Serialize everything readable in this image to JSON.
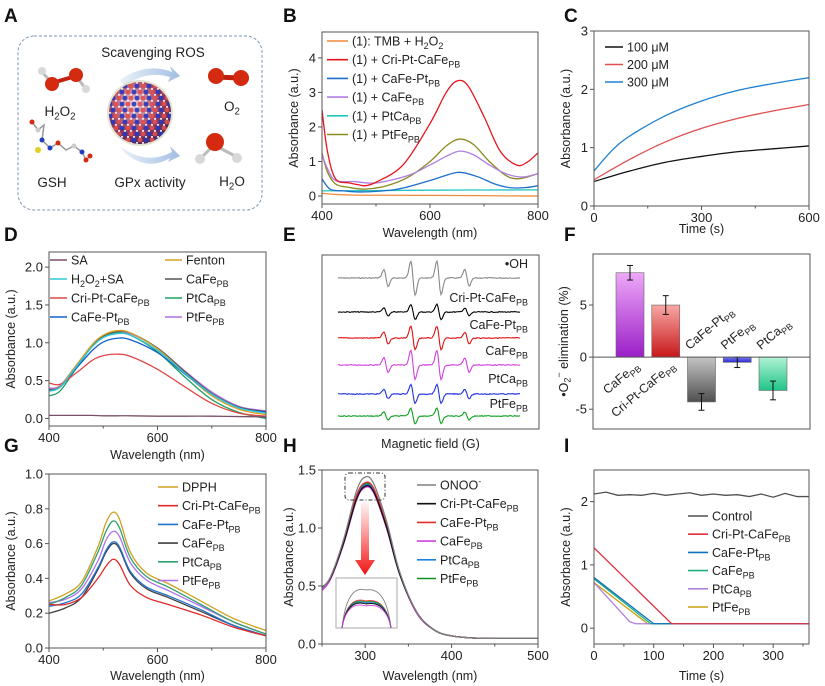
{
  "figure": {
    "panel_labels": [
      "A",
      "B",
      "C",
      "D",
      "E",
      "F",
      "G",
      "H",
      "I"
    ]
  },
  "panel_a": {
    "top_label": "Scavenging ROS",
    "bottom_label": "GPx activity",
    "molecules": {
      "h2o2": "H_{2}O_{2}",
      "gsh": "GSH",
      "o2": "O_{2}",
      "h2o": "H_{2}O"
    },
    "colors": {
      "border": "#7b97b8",
      "arrow": "#9dbbe0",
      "oxygen": "#d42a10",
      "hydrogen": "#d8d8d8"
    }
  },
  "chart_data": [
    {
      "id": "B",
      "type": "line",
      "xlabel": "Wavelength (nm)",
      "ylabel": "Absorbance (a.u.)",
      "xlim": [
        400,
        800
      ],
      "ylim": [
        -0.23,
        4.75
      ],
      "xticks": [
        "400",
        "600",
        "800"
      ],
      "yticks": [
        "0",
        "1",
        "2",
        "3",
        "4"
      ],
      "series": [
        {
          "name": "(1): TMB + H_{2}O_{2}",
          "color": "#f08a3c",
          "x": [
            400,
            450,
            600,
            800
          ],
          "y": [
            0.08,
            0.03,
            0.02,
            0.0
          ]
        },
        {
          "name": "(1) + Cri-Pt-CaFe_{PB}",
          "color": "#e8141e",
          "x": [
            400,
            410,
            425,
            450,
            470,
            480,
            500,
            550,
            600,
            630,
            650,
            670,
            700,
            730,
            760,
            780,
            800
          ],
          "y": [
            2.5,
            1.3,
            0.5,
            0.38,
            0.32,
            0.3,
            0.4,
            0.9,
            2.1,
            3.0,
            3.33,
            3.2,
            2.3,
            1.3,
            0.9,
            0.98,
            1.25
          ]
        },
        {
          "name": "(1) + CaFe-Pt_{PB}",
          "color": "#1f6fc8",
          "x": [
            400,
            415,
            440,
            480,
            540,
            600,
            640,
            660,
            690,
            720,
            750,
            780,
            800
          ],
          "y": [
            0.5,
            0.2,
            0.15,
            0.12,
            0.2,
            0.45,
            0.65,
            0.68,
            0.55,
            0.35,
            0.24,
            0.25,
            0.3
          ]
        },
        {
          "name": "(1) + CaFe_{PB}",
          "color": "#b07ee0",
          "x": [
            400,
            410,
            425,
            460,
            500,
            560,
            600,
            630,
            655,
            680,
            710,
            740,
            770,
            800
          ],
          "y": [
            1.2,
            0.8,
            0.45,
            0.42,
            0.38,
            0.6,
            0.9,
            1.15,
            1.3,
            1.2,
            0.9,
            0.65,
            0.55,
            0.65
          ]
        },
        {
          "name": "(1) + PtCa_{PB}",
          "color": "#20c8c0",
          "x": [
            400,
            600,
            800
          ],
          "y": [
            0.15,
            0.17,
            0.18
          ]
        },
        {
          "name": "(1) + PtFe_{PB}",
          "color": "#8a8a1e",
          "x": [
            400,
            410,
            425,
            450,
            480,
            520,
            560,
            600,
            630,
            655,
            680,
            710,
            740,
            760,
            780,
            800
          ],
          "y": [
            1.25,
            0.7,
            0.35,
            0.25,
            0.2,
            0.3,
            0.55,
            1.0,
            1.45,
            1.65,
            1.5,
            1.0,
            0.6,
            0.5,
            0.55,
            0.65
          ]
        }
      ]
    },
    {
      "id": "C",
      "type": "line",
      "xlabel": "Time (s)",
      "ylabel": "Absorbance (a.u.)",
      "xlim": [
        0,
        600
      ],
      "ylim": [
        0,
        3
      ],
      "xticks": [
        "0",
        "300",
        "600"
      ],
      "yticks": [
        "0",
        "1",
        "2",
        "3"
      ],
      "series": [
        {
          "name": "100 μM",
          "color": "#111111",
          "x": [
            0,
            100,
            200,
            300,
            400,
            500,
            600
          ],
          "y": [
            0.42,
            0.6,
            0.75,
            0.85,
            0.93,
            0.98,
            1.03
          ]
        },
        {
          "name": "200 μM",
          "color": "#e05050",
          "x": [
            0,
            100,
            200,
            300,
            400,
            500,
            600
          ],
          "y": [
            0.45,
            0.8,
            1.1,
            1.33,
            1.5,
            1.63,
            1.74
          ]
        },
        {
          "name": "300 μM",
          "color": "#2080d0",
          "x": [
            0,
            50,
            100,
            200,
            300,
            400,
            500,
            600
          ],
          "y": [
            0.6,
            0.95,
            1.2,
            1.55,
            1.8,
            1.98,
            2.1,
            2.2
          ]
        }
      ]
    },
    {
      "id": "D",
      "type": "line",
      "xlabel": "Wavelength (nm)",
      "ylabel": "Absorbance (a.u.)",
      "xlim": [
        400,
        800
      ],
      "ylim": [
        -0.1,
        2.2
      ],
      "xticks": [
        "400",
        "600",
        "800"
      ],
      "yticks": [
        "0.0",
        "0.5",
        "1.0",
        "1.5",
        "2.0"
      ],
      "x": [
        400,
        420,
        450,
        480,
        500,
        525,
        550,
        600,
        650,
        700,
        750,
        800
      ],
      "series": [
        {
          "name": "SA",
          "color": "#7a5068",
          "y": [
            0.04,
            0.04,
            0.04,
            0.04,
            0.035,
            0.035,
            0.035,
            0.03,
            0.03,
            0.03,
            0.025,
            0.02
          ]
        },
        {
          "name": "H_{2}O_{2}+SA",
          "color": "#30c8d8",
          "y": [
            0.36,
            0.41,
            0.68,
            0.95,
            1.07,
            1.12,
            1.1,
            0.9,
            0.6,
            0.32,
            0.14,
            0.07
          ]
        },
        {
          "name": "Cri-Pt-CaFe_{PB}",
          "color": "#e04848",
          "y": [
            0.47,
            0.45,
            0.6,
            0.77,
            0.83,
            0.85,
            0.82,
            0.65,
            0.42,
            0.2,
            0.07,
            0.03
          ]
        },
        {
          "name": "CaFe-Pt_{PB}",
          "color": "#1060d0",
          "y": [
            0.37,
            0.41,
            0.66,
            0.9,
            1.01,
            1.06,
            1.04,
            0.87,
            0.59,
            0.32,
            0.14,
            0.08
          ]
        },
        {
          "name": "Fenton",
          "color": "#d8a020",
          "y": [
            0.37,
            0.42,
            0.7,
            0.98,
            1.1,
            1.16,
            1.13,
            0.92,
            0.6,
            0.3,
            0.12,
            0.05
          ]
        },
        {
          "name": "CaFe_{PB}",
          "color": "#555555",
          "y": [
            0.38,
            0.42,
            0.7,
            0.97,
            1.09,
            1.15,
            1.13,
            0.93,
            0.62,
            0.33,
            0.15,
            0.09
          ]
        },
        {
          "name": "PtCa_{PB}",
          "color": "#20a060",
          "y": [
            0.3,
            0.36,
            0.66,
            0.96,
            1.08,
            1.13,
            1.1,
            0.88,
            0.55,
            0.25,
            0.08,
            0.0
          ]
        },
        {
          "name": "PtFe_{PB}",
          "color": "#b070e0",
          "y": [
            0.4,
            0.43,
            0.7,
            0.97,
            1.08,
            1.14,
            1.12,
            0.93,
            0.63,
            0.35,
            0.16,
            0.1
          ]
        }
      ]
    },
    {
      "id": "E",
      "type": "line",
      "xlabel": "Magnetic field (G)",
      "line_intensity_ratio": [
        1,
        2,
        2,
        1
      ],
      "series": [
        {
          "name": "•OH",
          "color": "#888888",
          "relative_amplitude": 1.0
        },
        {
          "name": "Cri-Pt-CaFe_{PB}",
          "color": "#000000",
          "relative_amplitude": 0.45
        },
        {
          "name": "CaFe-Pt_{PB}",
          "color": "#e01010",
          "relative_amplitude": 0.7
        },
        {
          "name": "CaFe_{PB}",
          "color": "#d040e0",
          "relative_amplitude": 0.85
        },
        {
          "name": "PtCa_{PB}",
          "color": "#2030e0",
          "relative_amplitude": 0.55
        },
        {
          "name": "PtFe_{PB}",
          "color": "#10a020",
          "relative_amplitude": 0.45
        }
      ]
    },
    {
      "id": "F",
      "type": "bar",
      "ylabel": "•O_{2}^{−} elimination (%)",
      "ylim": [
        -6.9,
        9.9
      ],
      "yticks": [
        "-5",
        "0",
        "5"
      ],
      "categories": [
        "CaFe_{PB}",
        "Cri-Pt-CaFe_{PB}",
        "CaFe-Pt_{PB}",
        "PtFe_{PB}",
        "PtCa_{PB}"
      ],
      "values": [
        8.1,
        5.0,
        -4.3,
        -0.5,
        -3.2
      ],
      "errors": [
        0.7,
        0.9,
        0.8,
        0.5,
        0.9
      ],
      "colors": [
        [
          "#eea8f8",
          "#9b1fc8"
        ],
        [
          "#f7a8a4",
          "#c8171a"
        ],
        [
          "#c4c4c4",
          "#505050"
        ],
        [
          "#7a7af2",
          "#2a2ad0"
        ],
        [
          "#b0f2d4",
          "#20c488"
        ]
      ]
    },
    {
      "id": "G",
      "type": "line",
      "xlabel": "Wavelength (nm)",
      "ylabel": "Absorbance (a.u.)",
      "xlim": [
        400,
        800
      ],
      "ylim": [
        0,
        1.0
      ],
      "xticks": [
        "400",
        "600",
        "800"
      ],
      "yticks": [
        "0.0",
        "0.2",
        "0.4",
        "0.6",
        "0.8",
        "1.0"
      ],
      "x": [
        400,
        430,
        460,
        490,
        505,
        518,
        530,
        550,
        580,
        620,
        680,
        740,
        800
      ],
      "series": [
        {
          "name": "DPPH",
          "color": "#d0a020",
          "y": [
            0.27,
            0.31,
            0.38,
            0.58,
            0.72,
            0.78,
            0.74,
            0.55,
            0.43,
            0.37,
            0.27,
            0.17,
            0.1
          ]
        },
        {
          "name": "Cri-Pt-CaFe_{PB}",
          "color": "#e02828",
          "y": [
            0.25,
            0.25,
            0.29,
            0.4,
            0.47,
            0.51,
            0.48,
            0.36,
            0.29,
            0.25,
            0.19,
            0.12,
            0.07
          ]
        },
        {
          "name": "CaFe-Pt_{PB}",
          "color": "#2070d0",
          "y": [
            0.24,
            0.26,
            0.31,
            0.46,
            0.56,
            0.61,
            0.58,
            0.44,
            0.35,
            0.3,
            0.22,
            0.13,
            0.07
          ]
        },
        {
          "name": "CaFe_{PB}",
          "color": "#404040",
          "y": [
            0.2,
            0.23,
            0.29,
            0.45,
            0.55,
            0.6,
            0.57,
            0.43,
            0.34,
            0.29,
            0.21,
            0.13,
            0.07
          ]
        },
        {
          "name": "PtCa_{PB}",
          "color": "#30a070",
          "y": [
            0.25,
            0.29,
            0.36,
            0.55,
            0.67,
            0.73,
            0.69,
            0.52,
            0.41,
            0.35,
            0.25,
            0.15,
            0.08
          ]
        },
        {
          "name": "PtFe_{PB}",
          "color": "#b070f0",
          "y": [
            0.26,
            0.28,
            0.34,
            0.5,
            0.62,
            0.67,
            0.64,
            0.49,
            0.39,
            0.33,
            0.24,
            0.15,
            0.08
          ]
        }
      ]
    },
    {
      "id": "H",
      "type": "line",
      "xlabel": "Wavelength (nm)",
      "ylabel": "Absorbance (a.u.)",
      "xlim": [
        250,
        500
      ],
      "ylim": [
        0,
        1.5
      ],
      "xticks": [
        "300",
        "400",
        "500"
      ],
      "yticks": [
        "0.0",
        "0.5",
        "1.0",
        "1.5"
      ],
      "x": [
        250,
        260,
        275,
        290,
        300,
        310,
        325,
        340,
        360,
        380,
        400,
        430,
        460,
        500
      ],
      "series": [
        {
          "name": "ONOO^{-}",
          "color": "#808080",
          "y": [
            0.48,
            0.58,
            0.9,
            1.32,
            1.44,
            1.38,
            1.05,
            0.62,
            0.27,
            0.12,
            0.07,
            0.05,
            0.05,
            0.05
          ]
        },
        {
          "name": "Cri-Pt-CaFe_{PB}",
          "color": "#101010",
          "y": [
            0.49,
            0.57,
            0.87,
            1.25,
            1.36,
            1.31,
            1.0,
            0.6,
            0.27,
            0.12,
            0.07,
            0.05,
            0.05,
            0.05
          ]
        },
        {
          "name": "CaFe-Pt_{PB}",
          "color": "#e03030",
          "y": [
            0.48,
            0.58,
            0.88,
            1.28,
            1.39,
            1.34,
            1.02,
            0.61,
            0.27,
            0.12,
            0.07,
            0.05,
            0.05,
            0.05
          ]
        },
        {
          "name": "CaFe_{PB}",
          "color": "#d040e0",
          "y": [
            0.46,
            0.56,
            0.86,
            1.24,
            1.35,
            1.3,
            0.99,
            0.6,
            0.26,
            0.12,
            0.07,
            0.05,
            0.05,
            0.05
          ]
        },
        {
          "name": "PtCa_{PB}",
          "color": "#2080e0",
          "y": [
            0.47,
            0.57,
            0.87,
            1.26,
            1.37,
            1.32,
            1.0,
            0.6,
            0.27,
            0.12,
            0.07,
            0.05,
            0.05,
            0.05
          ]
        },
        {
          "name": "PtFe_{PB}",
          "color": "#109020",
          "y": [
            0.48,
            0.58,
            0.88,
            1.27,
            1.38,
            1.33,
            1.01,
            0.61,
            0.27,
            0.12,
            0.07,
            0.05,
            0.05,
            0.05
          ]
        }
      ]
    },
    {
      "id": "I",
      "type": "line",
      "xlabel": "Time (s)",
      "ylabel": "Absorbance (a.u.)",
      "xlim": [
        0,
        360
      ],
      "ylim": [
        -0.25,
        2.5
      ],
      "xticks": [
        "0",
        "100",
        "200",
        "300"
      ],
      "yticks": [
        "0",
        "1",
        "2"
      ],
      "series": [
        {
          "name": "Control",
          "color": "#505050",
          "x": [
            0,
            20,
            40,
            60,
            80,
            100,
            120,
            140,
            160,
            180,
            200,
            220,
            240,
            260,
            280,
            300,
            320,
            340,
            360
          ],
          "y": [
            2.12,
            2.15,
            2.1,
            2.11,
            2.1,
            2.13,
            2.1,
            2.12,
            2.14,
            2.1,
            2.12,
            2.1,
            2.11,
            2.08,
            2.12,
            2.07,
            2.13,
            2.08,
            2.08
          ]
        },
        {
          "name": "Cri-Pt-CaFe_{PB}",
          "color": "#e03040",
          "x": [
            0,
            130,
            360
          ],
          "y": [
            1.27,
            0.07,
            0.07
          ]
        },
        {
          "name": "CaFe-Pt_{PB}",
          "color": "#1070c0",
          "x": [
            0,
            100,
            360
          ],
          "y": [
            0.8,
            0.07,
            0.07
          ]
        },
        {
          "name": "CaFe_{PB}",
          "color": "#20b080",
          "x": [
            0,
            95,
            360
          ],
          "y": [
            0.78,
            0.07,
            0.07
          ]
        },
        {
          "name": "PtCa_{PB}",
          "color": "#b080e0",
          "x": [
            0,
            60,
            70,
            360
          ],
          "y": [
            0.72,
            0.1,
            0.07,
            0.07
          ]
        },
        {
          "name": "PtFe_{PB}",
          "color": "#c8a010",
          "x": [
            0,
            90,
            360
          ],
          "y": [
            0.72,
            0.07,
            0.07
          ]
        }
      ]
    }
  ]
}
